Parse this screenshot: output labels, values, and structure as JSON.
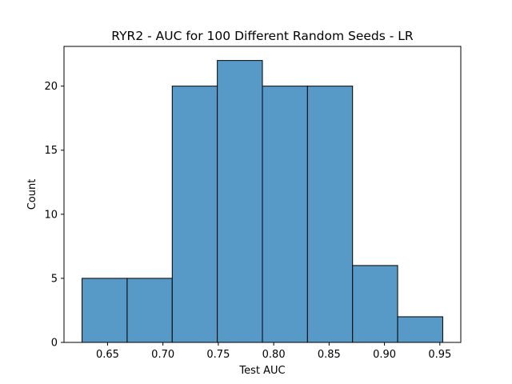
{
  "chart_data": {
    "type": "bar",
    "subtype": "histogram",
    "title": "RYR2 - AUC for 100 Different Random Seeds - LR",
    "xlabel": "Test AUC",
    "ylabel": "Count",
    "bin_edges": [
      0.627,
      0.6677,
      0.7084,
      0.7491,
      0.7898,
      0.8305,
      0.8712,
      0.9119,
      0.9526
    ],
    "values": [
      5,
      5,
      20,
      22,
      20,
      20,
      6,
      2
    ],
    "xlim": [
      0.6107,
      0.9689
    ],
    "ylim": [
      0,
      23.1
    ],
    "xticks": [
      "0.65",
      "0.70",
      "0.75",
      "0.80",
      "0.85",
      "0.90",
      "0.95"
    ],
    "xtick_values": [
      0.65,
      0.7,
      0.75,
      0.8,
      0.85,
      0.9,
      0.95
    ],
    "yticks": [
      "0",
      "5",
      "10",
      "15",
      "20"
    ],
    "ytick_values": [
      0,
      5,
      10,
      15,
      20
    ],
    "grid": false,
    "bar_color": "#5799c7",
    "edge_color": "#000000"
  }
}
